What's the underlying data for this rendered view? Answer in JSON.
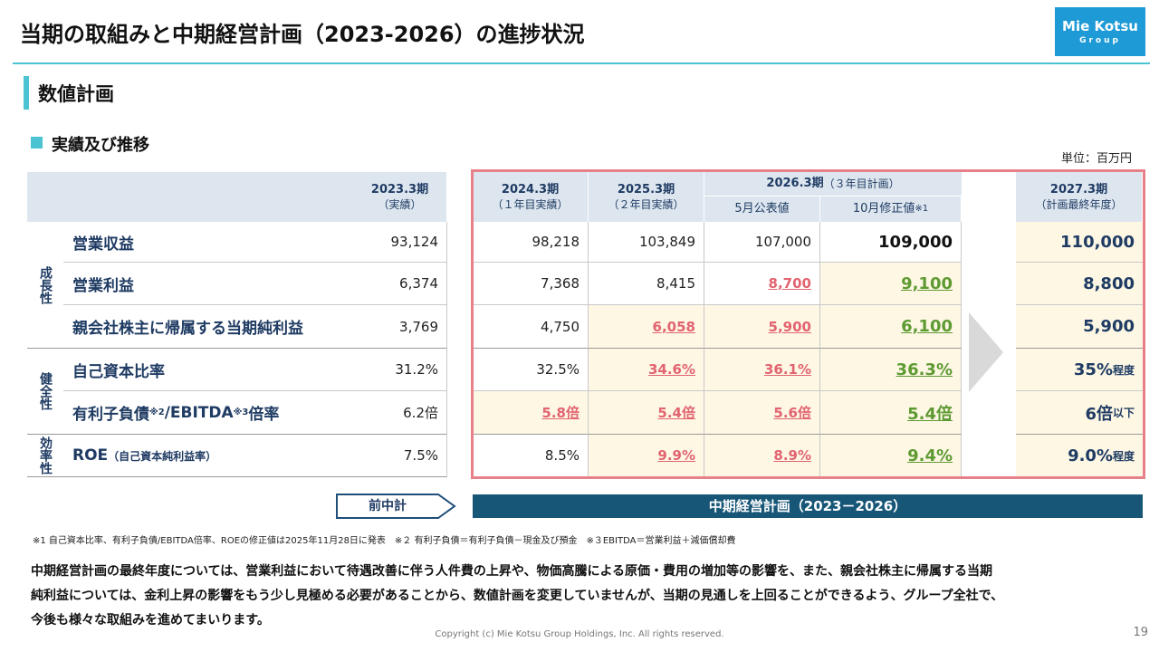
{
  "header": {
    "title": "当期の取組みと中期経営計画（2023-2026）の進捗状況",
    "logo": [
      "Mie Kotsu",
      "Group"
    ]
  },
  "section": "数値計画",
  "subsection": "実績及び推移",
  "unit": "単位：百万円",
  "table": {
    "columns": [
      [
        "2023.3期",
        "（実績）"
      ],
      [
        "2024.3期",
        "（１年目実績）"
      ],
      [
        "2025.3期",
        "（２年目実績）"
      ],
      [
        "2027.3期",
        "（計画最終年度）"
      ]
    ],
    "plan_header": {
      "title": "2026.3期",
      "note": "（３年目計画）",
      "sub": [
        [
          "5月公表値"
        ],
        [
          "10月修正値",
          "※1"
        ]
      ]
    },
    "groups": [
      "成長性",
      "健全性",
      "効率性"
    ],
    "rows": [
      {
        "label": [
          "営業収益"
        ],
        "values": [
          [
            "93,124"
          ],
          [
            "98,218"
          ],
          [
            "103,849"
          ],
          [
            "107,000"
          ],
          [
            "109,000"
          ],
          [
            "110,000"
          ]
        ]
      },
      {
        "label": [
          "営業利益"
        ],
        "values": [
          [
            "6,374"
          ],
          [
            "7,368"
          ],
          [
            "8,415"
          ],
          [
            "8,700"
          ],
          [
            "9,100"
          ],
          [
            "8,800"
          ]
        ]
      },
      {
        "label": [
          "親会社株主に帰属する当期純利益"
        ],
        "values": [
          [
            "3,769"
          ],
          [
            "4,750"
          ],
          [
            "6,058"
          ],
          [
            "5,900"
          ],
          [
            "6,100"
          ],
          [
            "5,900"
          ]
        ]
      },
      {
        "label": [
          "自己資本比率"
        ],
        "values": [
          [
            "31.2%"
          ],
          [
            "32.5%"
          ],
          [
            "34.6%"
          ],
          [
            "36.1%"
          ],
          [
            "36.3%"
          ],
          [
            "35%",
            "程度"
          ]
        ]
      },
      {
        "label": [
          "有利子負債",
          "※2",
          "/EBITDA",
          "※3",
          "倍率"
        ],
        "values": [
          [
            "6.2倍"
          ],
          [
            "5.8倍"
          ],
          [
            "5.4倍"
          ],
          [
            "5.6倍"
          ],
          [
            "5.4倍"
          ],
          [
            "6倍",
            "以下"
          ]
        ]
      },
      {
        "label": [
          "ROE",
          "（自己資本純利益率）"
        ],
        "values": [
          [
            "7.5%"
          ],
          [
            "8.5%"
          ],
          [
            "9.9%"
          ],
          [
            "8.9%"
          ],
          [
            "9.4%"
          ],
          [
            "9.0%",
            "程度"
          ]
        ]
      }
    ]
  },
  "legs": {
    "prev": "前中計",
    "plan": "中期経営計画（2023－2026）"
  },
  "footnote": "※1 自己資本比率、有利子負債/EBITDA倍率、ROEの修正値は2025年11月28日に発表　※２ 有利子負債＝有利子負債－現金及び預金　※３EBITDA＝営業利益＋減価償却費",
  "body": [
    "中期経営計画の最終年度については、営業利益において待遇改善に伴う人件費の上昇や、物価高騰による原価・費用の増加等の影響を、また、親会社株主に帰属する当期",
    "純利益については、金利上昇の影響をもう少し見極める必要があることから、数値計画を変更していませんが、当期の見通しを上回ることができるよう、グループ全社で、",
    "今後も様々な取組みを進めてまいります。"
  ],
  "copyright": "Copyright (c) Mie Kotsu Group Holdings, Inc. All rights reserved.",
  "page": "19"
}
